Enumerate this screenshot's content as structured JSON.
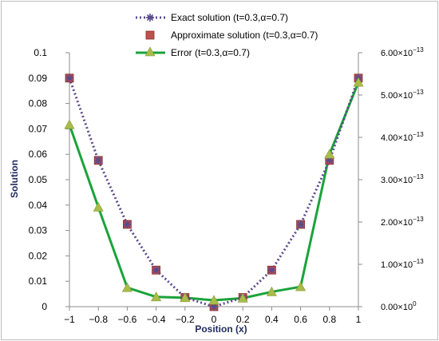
{
  "chart_data": {
    "type": "line",
    "title": "",
    "xlabel": "Position (x)",
    "ylabel": "Solution",
    "y2label": "",
    "x": [
      -1,
      -0.8,
      -0.6,
      -0.4,
      -0.2,
      0,
      0.2,
      0.4,
      0.6,
      0.8,
      1
    ],
    "x_tick_labels": [
      "−1",
      "−0.8",
      "−0.6",
      "−0.4",
      "−0.2",
      "0",
      "0.2",
      "0.4",
      "0.6",
      "0.8",
      "1"
    ],
    "ylim": [
      0,
      0.1
    ],
    "y_tick_labels": [
      "0",
      "0.01",
      "0.02",
      "0.03",
      "0.04",
      "0.05",
      "0.06",
      "0.07",
      "0.08",
      "0.09",
      "0.1"
    ],
    "y2lim": [
      0,
      6e-13
    ],
    "y2_tick_labels": [
      {
        "mantissa": "0.00",
        "exp": "0"
      },
      {
        "mantissa": "1.00",
        "exp": "−13"
      },
      {
        "mantissa": "2.00",
        "exp": "−13"
      },
      {
        "mantissa": "3.00",
        "exp": "−13"
      },
      {
        "mantissa": "4.00",
        "exp": "−13"
      },
      {
        "mantissa": "5.00",
        "exp": "−13"
      },
      {
        "mantissa": "6.00",
        "exp": "−13"
      }
    ],
    "y2_tick_prefix": "×10",
    "legend_position": "top",
    "series": [
      {
        "name": "Exact solution (t=0.3,α=0.7)",
        "axis": "left",
        "style": "dotted-line-star",
        "color": "#5b4a8b",
        "values": [
          0.09,
          0.0576,
          0.0324,
          0.0144,
          0.0036,
          0,
          0.0036,
          0.0144,
          0.0324,
          0.0576,
          0.09
        ]
      },
      {
        "name": "Approximate solution (t=0.3,α=0.7)",
        "axis": "left",
        "style": "square-markers",
        "color": "#c0504d",
        "values": [
          0.09,
          0.0576,
          0.0324,
          0.0144,
          0.0036,
          0,
          0.0036,
          0.0144,
          0.0324,
          0.0576,
          0.09
        ]
      },
      {
        "name": "Error (t=0.3,α=0.7)",
        "axis": "right",
        "style": "solid-line-triangle",
        "color": "#1aa33a",
        "marker_color": "#a8bd4a",
        "values": [
          4.3e-13,
          2.35e-13,
          4.5e-14,
          2.3e-14,
          2.1e-14,
          1.5e-14,
          2e-14,
          3.5e-14,
          4.7e-14,
          3.6e-13,
          5.3e-13
        ]
      }
    ],
    "colors": {
      "left_axis_text": "#000000",
      "right_axis_text": "#1aa33a",
      "axis_title": "#1f2a5c"
    }
  }
}
